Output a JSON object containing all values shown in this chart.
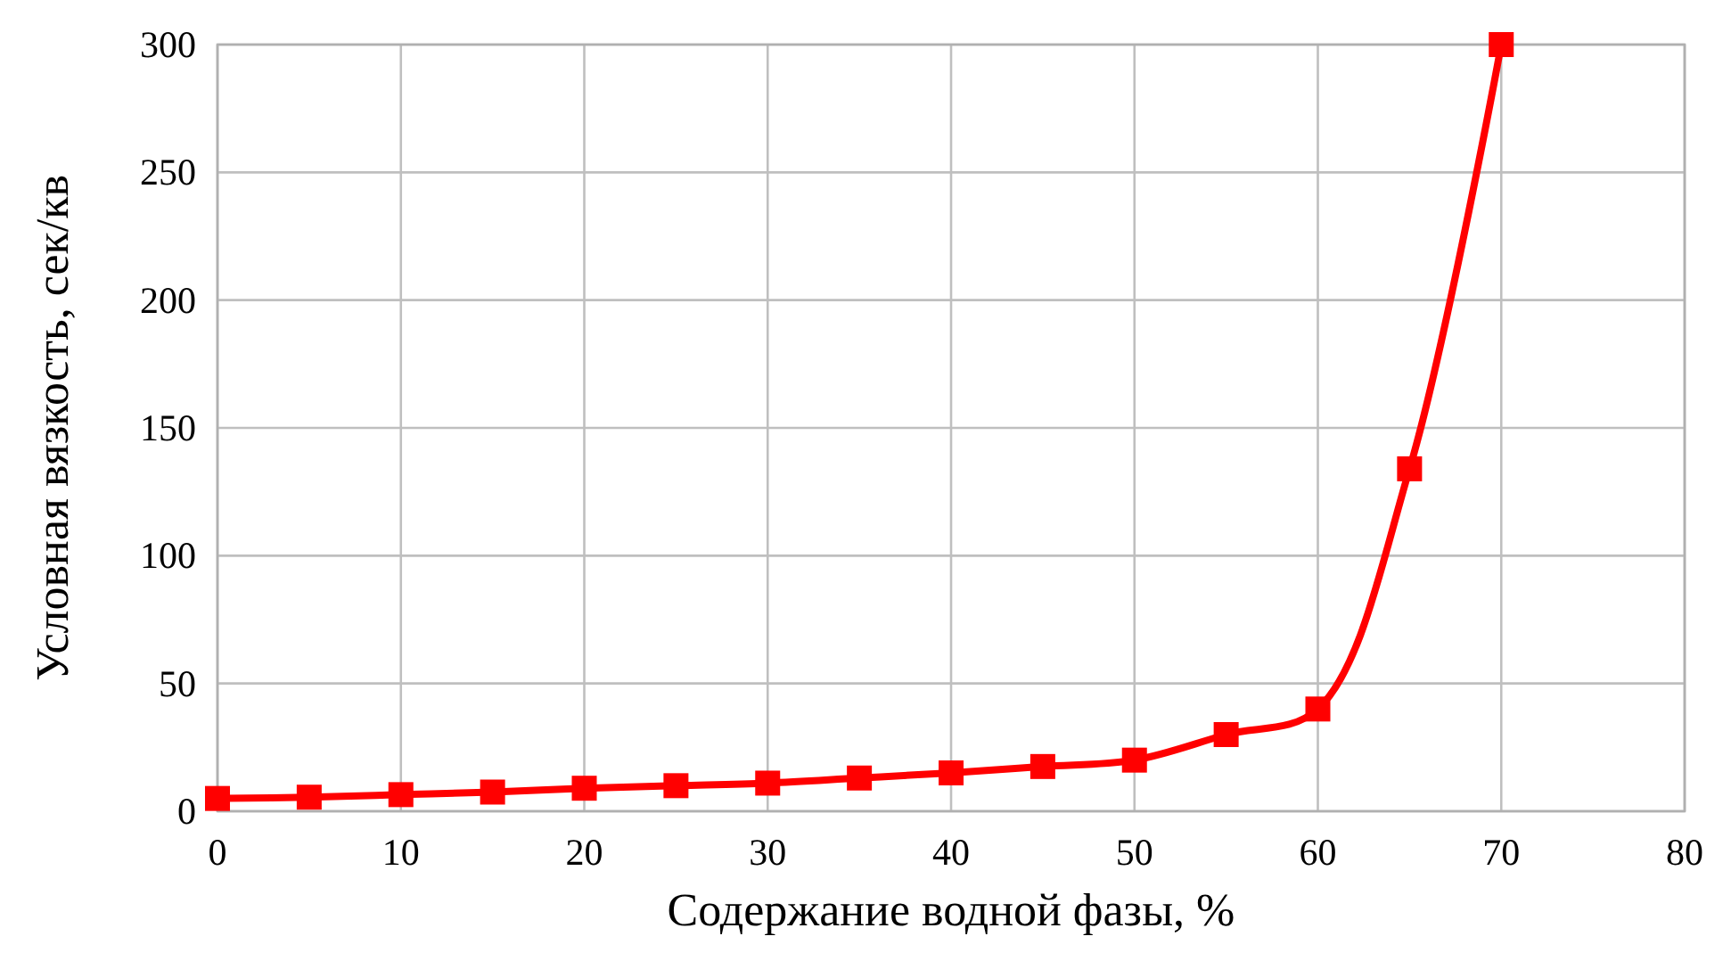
{
  "chart_data": {
    "type": "line",
    "xlabel": "Содержание водной фазы, %",
    "ylabel": "Условная вязкость, сек/кв",
    "x": [
      0,
      5,
      10,
      15,
      20,
      25,
      30,
      35,
      40,
      45,
      50,
      55,
      60,
      65,
      70
    ],
    "series": [
      {
        "color": "#ff0000",
        "values": [
          5,
          5.5,
          6.5,
          7.5,
          9,
          10,
          11,
          13,
          15,
          17.5,
          20,
          30,
          40,
          134,
          300
        ]
      }
    ],
    "xlim": [
      0,
      80
    ],
    "xticks": [
      0,
      10,
      20,
      30,
      40,
      50,
      60,
      70,
      80
    ],
    "ylim": [
      0,
      300
    ],
    "yticks": [
      0,
      50,
      100,
      150,
      200,
      250,
      300
    ],
    "grid": true,
    "marker": "square",
    "line_style": "solid"
  }
}
